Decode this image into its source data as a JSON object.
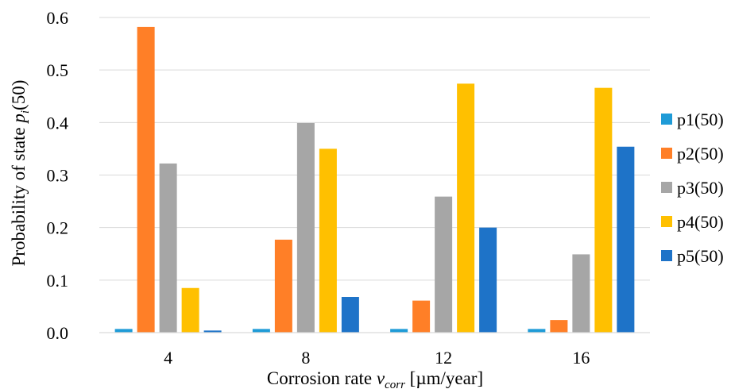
{
  "chart_data": {
    "type": "bar",
    "categories": [
      "4",
      "8",
      "12",
      "16"
    ],
    "series": [
      {
        "name": "p1(50)",
        "color": "#1F9BD7",
        "values": [
          0.007,
          0.007,
          0.007,
          0.007
        ]
      },
      {
        "name": "p2(50)",
        "color": "#FF7F27",
        "values": [
          0.582,
          0.177,
          0.061,
          0.024
        ]
      },
      {
        "name": "p3(50)",
        "color": "#A6A6A6",
        "values": [
          0.322,
          0.399,
          0.259,
          0.149
        ]
      },
      {
        "name": "p4(50)",
        "color": "#FFC000",
        "values": [
          0.085,
          0.35,
          0.474,
          0.466
        ]
      },
      {
        "name": "p5(50)",
        "color": "#1E73C8",
        "values": [
          0.004,
          0.068,
          0.2,
          0.354
        ]
      }
    ],
    "y_ticks": [
      "0.0",
      "0.1",
      "0.2",
      "0.3",
      "0.4",
      "0.5",
      "0.6"
    ],
    "ylim": [
      0,
      0.6
    ],
    "grid": true,
    "legend_position": "right",
    "xlabel": {
      "prefix": "Corrosion rate ",
      "var": "v",
      "sub": "corr",
      "suffix": " [µm/year]"
    },
    "ylabel": {
      "prefix": "Probability of state ",
      "var": "p",
      "sub": "i",
      "suffix": "(50)"
    }
  }
}
